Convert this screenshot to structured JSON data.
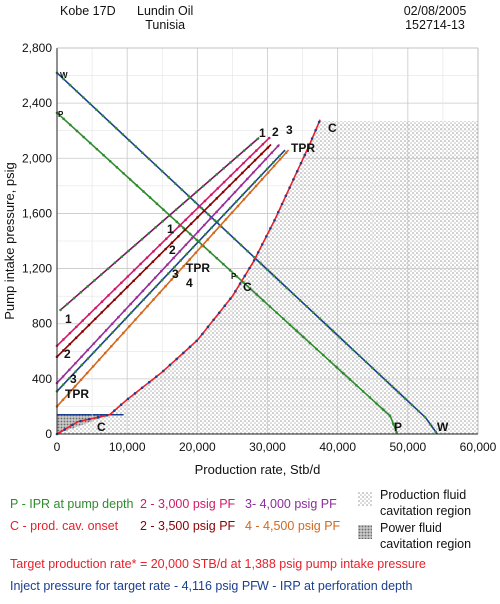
{
  "header": {
    "left": "Kobe 17D",
    "center_line1": "Lundin Oil",
    "center_line2": "Tunisia",
    "right_line1": "02/08/2005",
    "right_line2": "152714-13"
  },
  "chart_data": {
    "type": "line",
    "xlabel": "Production rate, Stb/d",
    "ylabel": "Pump intake pressure, psig",
    "xlim": [
      0,
      60000
    ],
    "ylim": [
      0,
      2800
    ],
    "x_ticks": [
      "0",
      "10,000",
      "20,000",
      "30,000",
      "40,000",
      "50,000",
      "60,000"
    ],
    "y_ticks": [
      "0",
      "400",
      "800",
      "1,200",
      "1,600",
      "2,000",
      "2,400",
      "2,800"
    ],
    "series": [
      {
        "name": "P - IPR at pump depth",
        "label": "P",
        "color": "#2e8b2e",
        "marker": "#2e8b2e",
        "points": [
          [
            0,
            2330
          ],
          [
            47500,
            130
          ],
          [
            48500,
            0
          ]
        ]
      },
      {
        "name": "W - IRP at perforation depth",
        "label": "W",
        "color": "#1a3f8f",
        "marker": "#2e8b2e",
        "points": [
          [
            0,
            2620
          ],
          [
            52500,
            120
          ],
          [
            54200,
            0
          ]
        ]
      },
      {
        "name": "1",
        "label": "1",
        "color": "#7b1060",
        "marker": "#2e8b2e",
        "points": [
          [
            500,
            900
          ],
          [
            28800,
            2150
          ]
        ]
      },
      {
        "name": "2 - 3,000 psig PF",
        "label": "2",
        "color": "#d11a6a",
        "marker": "#d11a6a",
        "points": [
          [
            0,
            640
          ],
          [
            30300,
            2150
          ]
        ]
      },
      {
        "name": "2 - 3,500 psig PF",
        "label": "2",
        "color": "#8b0000",
        "marker": "#8b0000",
        "points": [
          [
            0,
            560
          ],
          [
            30500,
            2100
          ]
        ]
      },
      {
        "name": "3- 4,000 psig PF",
        "label": "3",
        "color": "#8b2d9c",
        "marker": "#b02a8f",
        "points": [
          [
            0,
            370
          ],
          [
            31700,
            2100
          ]
        ]
      },
      {
        "name": "TPR",
        "label": "TPR",
        "color": "#1a3f8f",
        "marker": "#2e8b2e",
        "points": [
          [
            0,
            310
          ],
          [
            32500,
            2060
          ]
        ]
      },
      {
        "name": "4 - 4,500 psig PF",
        "label": "4",
        "color": "#d2691e",
        "marker": "#d2691e",
        "points": [
          [
            0,
            200
          ],
          [
            33000,
            2060
          ]
        ]
      },
      {
        "name": "C - prod. cav. onset",
        "label": "C",
        "color": "#e8202a",
        "marker": "#1a3f8f",
        "points": [
          [
            0,
            0
          ],
          [
            3000,
            90
          ],
          [
            7500,
            140
          ],
          [
            10000,
            250
          ],
          [
            15000,
            450
          ],
          [
            20000,
            680
          ],
          [
            25000,
            1000
          ],
          [
            28000,
            1250
          ],
          [
            31000,
            1550
          ],
          [
            34000,
            1880
          ],
          [
            36000,
            2100
          ],
          [
            37500,
            2280
          ]
        ]
      }
    ],
    "inline_labels": {
      "curve_ends": [
        "1",
        "2",
        "3",
        "C",
        "TPR"
      ],
      "mid_labels": [
        "1",
        "2",
        "3",
        "TPR",
        "4",
        "P",
        "C"
      ],
      "low_labels": [
        "1",
        "2",
        "3",
        "TPR",
        "C"
      ],
      "axis_end_labels": [
        "P",
        "W"
      ],
      "axis_start_labels": [
        "W",
        "P"
      ]
    },
    "grid": true,
    "regions": [
      {
        "name": "Production fluid cavitation region"
      },
      {
        "name": "Power fluid cavitation region"
      }
    ]
  },
  "legend": {
    "col1": [
      {
        "text": "P - IPR at pump depth",
        "color": "#2e8b2e"
      },
      {
        "text": "C - prod. cav. onset",
        "color": "#e8202a"
      }
    ],
    "col2": [
      {
        "text": "2 - 3,000 psig PF",
        "color": "#d11a6a"
      },
      {
        "text": "2 - 3,500 psig PF",
        "color": "#8b0000"
      }
    ],
    "col3": [
      {
        "text": "3- 4,000 psig PF",
        "color": "#8b2d9c"
      },
      {
        "text": "4 - 4,500 psig PF",
        "color": "#d2691e"
      }
    ],
    "region1_line1": "Production fluid",
    "region1_line2": "cavitation region",
    "region2_line1": "Power fluid",
    "region2_line2": "cavitation region"
  },
  "notes": {
    "target": "Target production rate* = 20,000 STB/d at 1,388 psig pump intake pressure",
    "inject": "Inject pressure for target rate - 4,116 psig PF",
    "irp": "W - IRP at perforation depth",
    "target_color": "#e8202a",
    "inject_color": "#1a3f8f"
  }
}
